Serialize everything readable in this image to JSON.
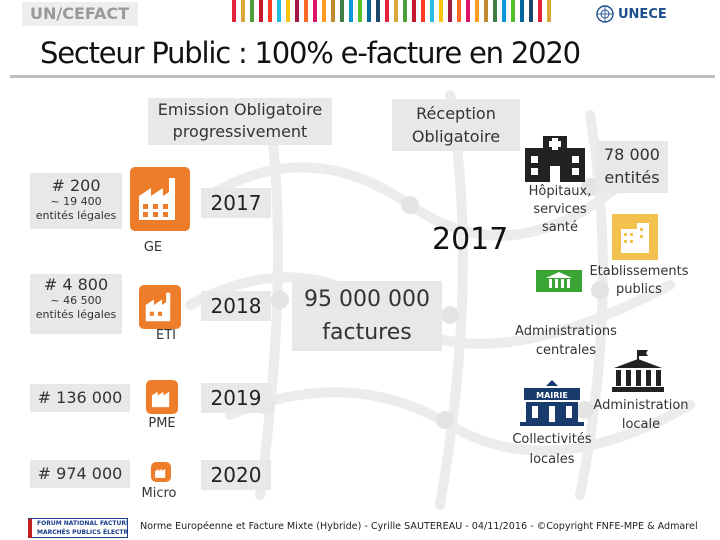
{
  "header": {
    "org_left": "UN/CEFACT",
    "org_right": "UNECE",
    "stripe_colors": [
      "#e5243b",
      "#dda63a",
      "#4c9f38",
      "#c5192d",
      "#ff3a21",
      "#26bde2",
      "#fcc30b",
      "#a21942",
      "#fd6925",
      "#dd1367",
      "#fd9d24",
      "#bf8b2e",
      "#3f7e44",
      "#0a97d9",
      "#56c02b",
      "#00689d",
      "#19486a",
      "#e5243b",
      "#dda63a",
      "#4c9f38",
      "#c5192d",
      "#ff3a21",
      "#26bde2",
      "#fcc30b",
      "#a21942",
      "#fd6925",
      "#dd1367",
      "#fd9d24",
      "#bf8b2e",
      "#3f7e44",
      "#0a97d9",
      "#56c02b",
      "#00689d",
      "#19486a",
      "#e5243b",
      "#dda63a",
      "#4c9f38",
      "#c5192d",
      "#ff3a21",
      "#26bde2",
      "#fcc30b",
      "#a21942",
      "#fd6925",
      "#dd1367",
      "#fd9d24",
      "#bf8b2e",
      "#3f7e44",
      "#0a97d9",
      "#56c02b",
      "#00689d",
      "#19486a",
      "#e5243b",
      "#dda63a",
      "#4c9f38",
      "#c5192d",
      "#ff3a21",
      "#26bde2",
      "#fcc30b",
      "#a21942",
      "#fd6925",
      "#dd1367",
      "#fd9d24",
      "#bf8b2e",
      "#3f7e44",
      "#0a97d9",
      "#56c02b"
    ]
  },
  "title": "Secteur Public : 100% e-facture en 2020",
  "emission": {
    "label_line1": "Emission Obligatoire",
    "label_line2": "progressivement"
  },
  "reception": {
    "label_line1": "Réception",
    "label_line2": "Obligatoire",
    "year": "2017",
    "volume_line1": "95 000 000",
    "volume_line2": "factures"
  },
  "tiers": [
    {
      "count": "# 200",
      "sub_line1": "~ 19 400",
      "sub_line2": "entités légales",
      "category": "GE",
      "year": "2017"
    },
    {
      "count": "# 4 800",
      "sub_line1": "~ 46 500",
      "sub_line2": "entités légales",
      "category": "ETI",
      "year": "2018"
    },
    {
      "count": "# 136 000",
      "category": "PME",
      "year": "2019"
    },
    {
      "count": "# 974 000",
      "category": "Micro",
      "year": "2020"
    }
  ],
  "entities": {
    "total_line1": "78 000",
    "total_line2": "entités",
    "hopitaux_line1": "Hôpitaux,",
    "hopitaux_line2": "services",
    "hopitaux_line3": "santé",
    "etab_line1": "Etablissements",
    "etab_line2": "publics",
    "admin_c_line1": "Administrations",
    "admin_c_line2": "centrales",
    "admin_l_line1": "Administration",
    "admin_l_line2": "locale",
    "coll_line1": "Collectivités",
    "coll_line2": "locales",
    "mairie": "MAIRIE"
  },
  "footer": {
    "text": "Norme Européenne et Facture Mixte (Hybride) - Cyrille SAUTEREAU - 04/11/2016 - ©Copyright FNFE-MPE & Admarel",
    "logo_line1": "FORUM NATIONAL FACTURE ÉLECTRONIQUE",
    "logo_line2": "MARCHÉS PUBLICS ÉLECTRONIQUES"
  },
  "colors": {
    "orange": "#ee7d2b",
    "green": "#3aa534",
    "dark": "#222222",
    "gray_box": "#e8e8e8",
    "blue_logo": "#1a4f8c"
  },
  "icons": [
    "factory-icon",
    "hospital-icon",
    "building-icon",
    "bank-icon",
    "city-hall-icon",
    "un-emblem-icon"
  ]
}
